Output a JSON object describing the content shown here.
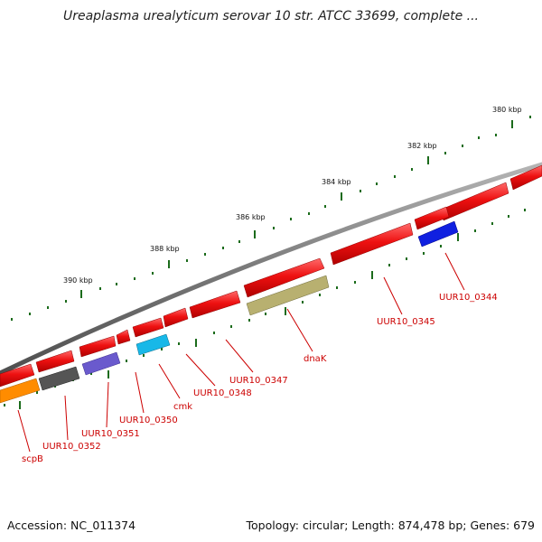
{
  "title": "Ureaplasma urealyticum serovar 10 str. ATCC 33699, complete ...",
  "accession": "Accession: NC_011374",
  "summary": "Topology: circular; Length: 874,478 bp; Genes: 679",
  "colors": {
    "backbone": "#7a7a7a",
    "tick": "#1b6b1b",
    "gene_label": "#cc0000",
    "feature_red": "#ee1111",
    "dnak": "#b8b070",
    "cmk": "#18b8e8",
    "UUR10_0344": "#1020e0",
    "UUR10_0351": "#6a5acd",
    "UUR10_0352": "#555555",
    "scpB": "#ff8c00"
  },
  "kbp_labels": [
    "380 kbp",
    "382 kbp",
    "384 kbp",
    "386 kbp",
    "388 kbp",
    "390 kbp"
  ],
  "gene_labels": [
    "UUR10_0344",
    "UUR10_0345",
    "dnaK",
    "UUR10_0347",
    "UUR10_0348",
    "cmk",
    "UUR10_0350",
    "UUR10_0351",
    "UUR10_0352",
    "scpB"
  ]
}
